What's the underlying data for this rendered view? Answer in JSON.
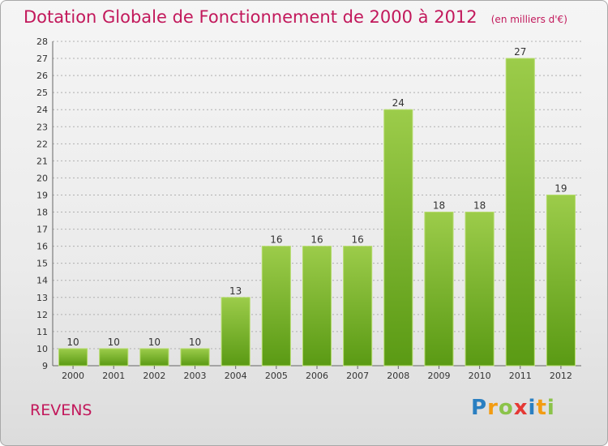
{
  "header": {
    "title": "Dotation Globale de Fonctionnement de 2000 à 2012",
    "subtitle": "(en milliers d'€)"
  },
  "footer": {
    "commune": "REVENS",
    "brand": "Proxiti",
    "brand_letters": [
      {
        "ch": "P",
        "color": "#2a7fc1"
      },
      {
        "ch": "r",
        "color": "#f39c12"
      },
      {
        "ch": "o",
        "color": "#8bc34a"
      },
      {
        "ch": "x",
        "color": "#e53935"
      },
      {
        "ch": "i",
        "color": "#2a7fc1"
      },
      {
        "ch": "t",
        "color": "#f39c12"
      },
      {
        "ch": "i",
        "color": "#8bc34a"
      }
    ]
  },
  "colors": {
    "bar_top": "#9ccc4a",
    "bar_bottom": "#5a9a14",
    "title": "#c2185b",
    "grid": "#b0b0b0"
  },
  "chart_data": {
    "type": "bar",
    "categories": [
      "2000",
      "2001",
      "2002",
      "2003",
      "2004",
      "2005",
      "2006",
      "2007",
      "2008",
      "2009",
      "2010",
      "2011",
      "2012"
    ],
    "values": [
      10,
      10,
      10,
      10,
      13,
      16,
      16,
      16,
      24,
      18,
      18,
      27,
      19
    ],
    "ylim": [
      9,
      28
    ],
    "yticks": [
      9,
      10,
      11,
      12,
      13,
      14,
      15,
      16,
      17,
      18,
      19,
      20,
      21,
      22,
      23,
      24,
      25,
      26,
      27,
      28
    ],
    "grid": true
  }
}
